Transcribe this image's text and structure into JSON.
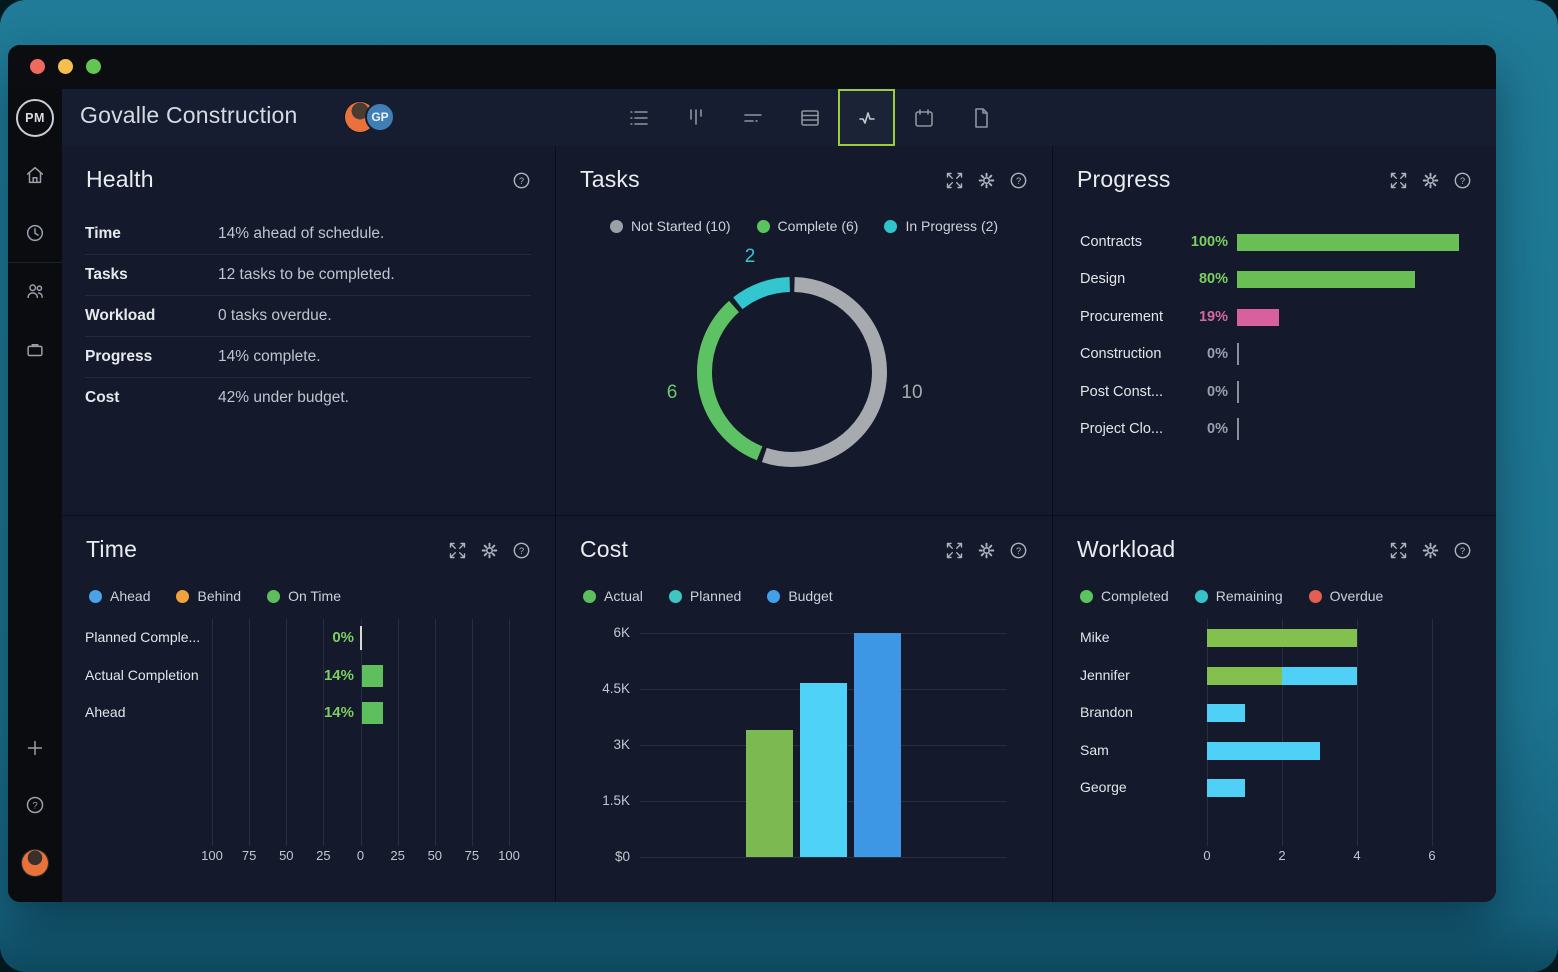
{
  "titlebar": {
    "traffic_lights": [
      "close",
      "minimize",
      "zoom"
    ]
  },
  "header": {
    "logo_text": "PM",
    "project_title": "Govalle Construction",
    "avatars": [
      {
        "type": "photo-avatar"
      },
      {
        "type": "initials-avatar",
        "text": "GP",
        "color": "#3f7fb6"
      }
    ],
    "toolbar": [
      {
        "icon": "list-view-icon",
        "active": false
      },
      {
        "icon": "gantt-view-icon",
        "active": false
      },
      {
        "icon": "sheet-view-icon",
        "active": false
      },
      {
        "icon": "table-view-icon",
        "active": false
      },
      {
        "icon": "dashboard-view-icon",
        "active": true
      },
      {
        "icon": "calendar-view-icon",
        "active": false
      },
      {
        "icon": "report-view-icon",
        "active": false
      }
    ],
    "active_tool_border": "#9ccb3b"
  },
  "sidebar": {
    "top_icons": [
      "home-icon",
      "clock-icon",
      "team-icon",
      "portfolio-icon"
    ],
    "bottom_icons": [
      "plus-icon",
      "help-icon",
      "user-avatar"
    ]
  },
  "panels": {
    "health": {
      "title": "Health",
      "icons": [
        "help-icon"
      ],
      "rows": [
        {
          "label": "Time",
          "value": "14% ahead of schedule."
        },
        {
          "label": "Tasks",
          "value": "12 tasks to be completed."
        },
        {
          "label": "Workload",
          "value": "0 tasks overdue."
        },
        {
          "label": "Progress",
          "value": "14% complete."
        },
        {
          "label": "Cost",
          "value": "42% under budget."
        }
      ]
    },
    "tasks": {
      "title": "Tasks",
      "icons": [
        "expand-icon",
        "settings-icon",
        "help-icon"
      ],
      "legend": [
        {
          "label": "Not Started (10)",
          "color": "#9aa0a6"
        },
        {
          "label": "Complete (6)",
          "color": "#5cc45f"
        },
        {
          "label": "In Progress (2)",
          "color": "#2fc4c9"
        }
      ],
      "donut": {
        "type": "donut",
        "segments": [
          {
            "name": "Not Started",
            "value": 10,
            "label": "10",
            "color": "#a7abb0",
            "label_color": "#a7abb0"
          },
          {
            "name": "Complete",
            "value": 6,
            "label": "6",
            "color": "#5dc264",
            "label_color": "#6cc96d"
          },
          {
            "name": "In Progress",
            "value": 2,
            "label": "2",
            "color": "#33c6cf",
            "label_color": "#3ac6d0"
          }
        ],
        "total": 18
      }
    },
    "progress": {
      "title": "Progress",
      "icons": [
        "expand-icon",
        "settings-icon",
        "help-icon"
      ],
      "type": "bar",
      "rows": [
        {
          "label": "Contracts",
          "pct": "100%",
          "value": 100,
          "bar_color": "#6abf54",
          "pct_color": "#7ccf63"
        },
        {
          "label": "Design",
          "pct": "80%",
          "value": 80,
          "bar_color": "#6abf54",
          "pct_color": "#7ccf63"
        },
        {
          "label": "Procurement",
          "pct": "19%",
          "value": 19,
          "bar_color": "#d9609f",
          "pct_color": "#cf6ba2"
        },
        {
          "label": "Construction",
          "pct": "0%",
          "value": 0,
          "bar_color": null,
          "pct_color": "#9aa0ab"
        },
        {
          "label": "Post Const...",
          "pct": "0%",
          "value": 0,
          "bar_color": null,
          "pct_color": "#9aa0ab"
        },
        {
          "label": "Project Clo...",
          "pct": "0%",
          "value": 0,
          "bar_color": null,
          "pct_color": "#9aa0ab"
        }
      ]
    },
    "time": {
      "title": "Time",
      "icons": [
        "expand-icon",
        "settings-icon",
        "help-icon"
      ],
      "type": "bar",
      "legend": [
        {
          "label": "Ahead",
          "color": "#4aa3e8"
        },
        {
          "label": "Behind",
          "color": "#f0a23c"
        },
        {
          "label": "On Time",
          "color": "#5bc05c"
        }
      ],
      "rows": [
        {
          "label": "Planned Comple...",
          "pct": "0%",
          "value": 0
        },
        {
          "label": "Actual Completion",
          "pct": "14%",
          "value": 14
        },
        {
          "label": "Ahead",
          "pct": "14%",
          "value": 14
        }
      ],
      "bar_color": "#5ec05d",
      "pct_color": "#7ccf63",
      "axis_ticks": [
        "100",
        "75",
        "50",
        "25",
        "0",
        "25",
        "50",
        "75",
        "100"
      ],
      "axis_range": [
        -100,
        100
      ]
    },
    "cost": {
      "title": "Cost",
      "icons": [
        "expand-icon",
        "settings-icon",
        "help-icon"
      ],
      "type": "bar",
      "legend": [
        {
          "label": "Actual",
          "color": "#5bbf5e"
        },
        {
          "label": "Planned",
          "color": "#3ec6c0"
        },
        {
          "label": "Budget",
          "color": "#42a0e8"
        }
      ],
      "y_ticks": [
        "6K",
        "4.5K",
        "3K",
        "1.5K",
        "$0"
      ],
      "ymax": 6000,
      "bars": [
        {
          "name": "Actual",
          "value": 3400,
          "color": "#7cb950"
        },
        {
          "name": "Planned",
          "value": 4650,
          "color": "#4fd2f8"
        },
        {
          "name": "Budget",
          "value": 6000,
          "color": "#3e97e5"
        }
      ]
    },
    "workload": {
      "title": "Workload",
      "icons": [
        "expand-icon",
        "settings-icon",
        "help-icon"
      ],
      "type": "bar",
      "legend": [
        {
          "label": "Completed",
          "color": "#5cc45f"
        },
        {
          "label": "Remaining",
          "color": "#35c3c9"
        },
        {
          "label": "Overdue",
          "color": "#e2604f"
        }
      ],
      "rows": [
        {
          "name": "Mike",
          "completed": 4,
          "remaining": 0
        },
        {
          "name": "Jennifer",
          "completed": 2,
          "remaining": 2
        },
        {
          "name": "Brandon",
          "completed": 0,
          "remaining": 1
        },
        {
          "name": "Sam",
          "completed": 0,
          "remaining": 3
        },
        {
          "name": "George",
          "completed": 0,
          "remaining": 1
        }
      ],
      "completed_color": "#84c04e",
      "remaining_color": "#4fd0f7",
      "axis_ticks": [
        "0",
        "2",
        "4",
        "6"
      ]
    }
  }
}
